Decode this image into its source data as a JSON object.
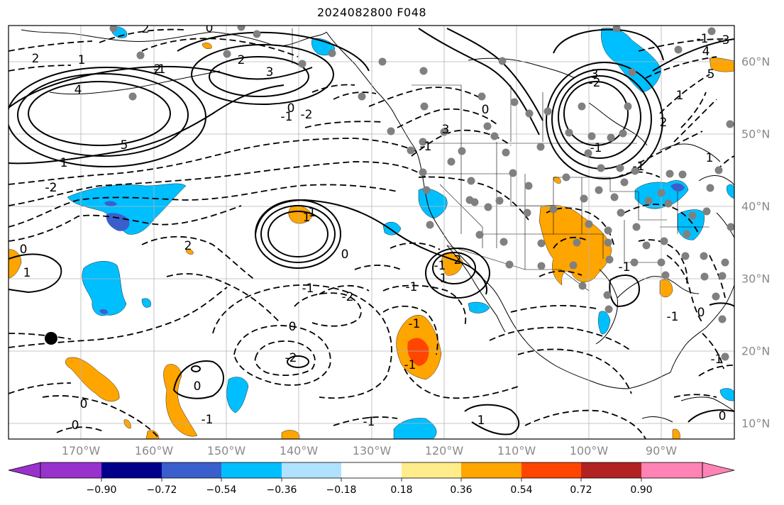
{
  "title": "2024082800 F048",
  "lon_labels": [
    "170°W",
    "160°W",
    "150°W",
    "140°W",
    "130°W",
    "120°W",
    "110°W",
    "100°W",
    "90°W"
  ],
  "lat_labels": [
    "60°N",
    "50°N",
    "40°N",
    "30°N",
    "20°N",
    "10°N"
  ],
  "colorbar": {
    "ticks": [
      "−0.90",
      "−0.72",
      "−0.54",
      "−0.36",
      "−0.18",
      "0.18",
      "0.36",
      "0.54",
      "0.72",
      "0.90"
    ],
    "colors": [
      "#9932cc",
      "#00008b",
      "#3a5fcd",
      "#00bfff",
      "#b0e2ff",
      "#ffffff",
      "#ffec8b",
      "#ffa500",
      "#ff4500",
      "#b22222",
      "#ff83b4"
    ]
  },
  "contour_labels": [
    "2",
    "1",
    "0",
    "2",
    "-1",
    "4",
    "3",
    "5",
    "1",
    "-2",
    "-1",
    "2",
    "0",
    "-2",
    "2",
    "3",
    "-1",
    "0",
    "-2",
    "-1",
    "3",
    "5",
    "-3",
    "4",
    "-1",
    "1",
    "2",
    "0",
    "0",
    "1",
    "-2",
    "-1",
    "-1",
    "0",
    "-2",
    "1",
    "0",
    "-2",
    "-1",
    "1",
    "-1",
    "-1",
    "-1",
    "0",
    "0",
    "-1",
    "1",
    "0",
    "2",
    "1",
    "0",
    "-1",
    "-1",
    "-1",
    "1",
    "-1",
    "2"
  ]
}
